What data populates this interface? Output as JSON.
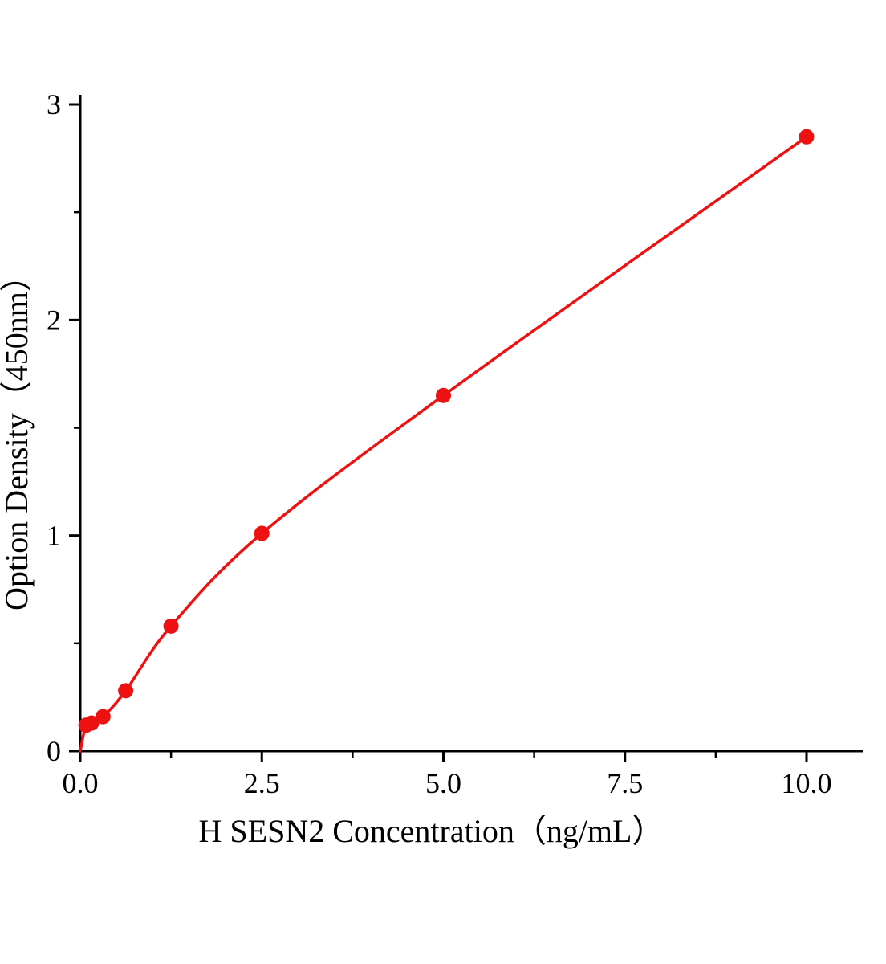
{
  "figure": {
    "kind": "ELISA standard curve"
  },
  "styles": {
    "accent": "#ee1111",
    "axis_color": "#000000",
    "background": "#ffffff"
  },
  "chart_data": {
    "type": "line",
    "title": "",
    "xlabel": "H SESN2 Concentration（ng/mL）",
    "ylabel": "Option Density（450nm）",
    "x": [
      0.078,
      0.156,
      0.313,
      0.625,
      1.25,
      2.5,
      5.0,
      10.0
    ],
    "y": [
      0.12,
      0.13,
      0.16,
      0.28,
      0.58,
      1.01,
      1.65,
      2.85
    ],
    "curve_origin": [
      0,
      0
    ],
    "xlim": [
      0,
      10.75
    ],
    "ylim": [
      0,
      3.05
    ],
    "grid": "off",
    "legend": "none",
    "x_ticks": {
      "major": [
        {
          "v": 0,
          "label": "0.0"
        },
        {
          "v": 2.5,
          "label": "2.5"
        },
        {
          "v": 5,
          "label": "5.0"
        },
        {
          "v": 7.5,
          "label": "7.5"
        },
        {
          "v": 10,
          "label": "10.0"
        }
      ],
      "minor": [
        1.25,
        3.75,
        6.25,
        8.75
      ]
    },
    "y_ticks": {
      "major": [
        {
          "v": 0,
          "label": "0"
        },
        {
          "v": 1,
          "label": "1"
        },
        {
          "v": 2,
          "label": "2"
        },
        {
          "v": 3,
          "label": "3"
        }
      ],
      "minor": [
        0.5,
        1.5,
        2.5
      ]
    }
  }
}
